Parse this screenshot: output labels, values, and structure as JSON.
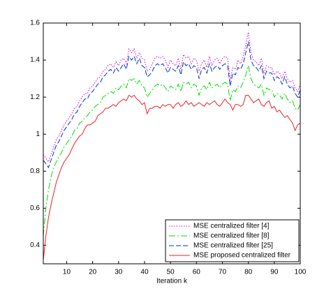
{
  "chart_data": {
    "type": "line",
    "xlabel": "Iteration k",
    "x": [
      1,
      2,
      3,
      4,
      5,
      6,
      7,
      8,
      9,
      10,
      11,
      12,
      13,
      14,
      15,
      16,
      17,
      18,
      19,
      20,
      21,
      22,
      23,
      24,
      25,
      26,
      27,
      28,
      29,
      30,
      31,
      32,
      33,
      34,
      35,
      36,
      37,
      38,
      39,
      40,
      41,
      42,
      43,
      44,
      45,
      46,
      47,
      48,
      49,
      50,
      51,
      52,
      53,
      54,
      55,
      56,
      57,
      58,
      59,
      60,
      61,
      62,
      63,
      64,
      65,
      66,
      67,
      68,
      69,
      70,
      71,
      72,
      73,
      74,
      75,
      76,
      77,
      78,
      79,
      80,
      81,
      82,
      83,
      84,
      85,
      86,
      87,
      88,
      89,
      90,
      91,
      92,
      93,
      94,
      95,
      96,
      97,
      98,
      99,
      100
    ],
    "series": [
      {
        "name": "MSE centralized filter [4]",
        "color": "#cc00cc",
        "linestyle": "dotted",
        "values": [
          0.89,
          0.87,
          0.85,
          0.89,
          0.93,
          0.97,
          0.99,
          1.02,
          1.05,
          1.07,
          1.09,
          1.11,
          1.14,
          1.15,
          1.18,
          1.2,
          1.22,
          1.22,
          1.25,
          1.26,
          1.28,
          1.3,
          1.31,
          1.34,
          1.35,
          1.37,
          1.38,
          1.36,
          1.39,
          1.37,
          1.4,
          1.41,
          1.38,
          1.46,
          1.44,
          1.46,
          1.41,
          1.44,
          1.41,
          1.4,
          1.34,
          1.35,
          1.38,
          1.41,
          1.42,
          1.41,
          1.42,
          1.4,
          1.36,
          1.4,
          1.38,
          1.37,
          1.41,
          1.35,
          1.43,
          1.41,
          1.42,
          1.38,
          1.41,
          1.4,
          1.34,
          1.38,
          1.4,
          1.36,
          1.42,
          1.37,
          1.4,
          1.41,
          1.38,
          1.41,
          1.42,
          1.41,
          1.29,
          1.36,
          1.35,
          1.4,
          1.38,
          1.42,
          1.48,
          1.55,
          1.44,
          1.4,
          1.39,
          1.37,
          1.41,
          1.33,
          1.37,
          1.36,
          1.36,
          1.32,
          1.34,
          1.33,
          1.3,
          1.34,
          1.3,
          1.28,
          1.29,
          1.25,
          1.23,
          1.27
        ]
      },
      {
        "name": "MSE centralized filter [8]",
        "color": "#00dd00",
        "linestyle": "dashdot",
        "values": [
          0.45,
          0.6,
          0.7,
          0.77,
          0.82,
          0.85,
          0.88,
          0.9,
          0.93,
          0.95,
          0.97,
          0.99,
          1.02,
          1.03,
          1.06,
          1.07,
          1.09,
          1.1,
          1.12,
          1.13,
          1.15,
          1.16,
          1.17,
          1.2,
          1.21,
          1.22,
          1.23,
          1.22,
          1.25,
          1.24,
          1.26,
          1.27,
          1.25,
          1.3,
          1.29,
          1.3,
          1.27,
          1.29,
          1.26,
          1.25,
          1.2,
          1.22,
          1.24,
          1.26,
          1.27,
          1.26,
          1.27,
          1.25,
          1.23,
          1.26,
          1.25,
          1.24,
          1.27,
          1.23,
          1.28,
          1.27,
          1.28,
          1.25,
          1.27,
          1.26,
          1.21,
          1.25,
          1.26,
          1.24,
          1.28,
          1.25,
          1.26,
          1.27,
          1.25,
          1.27,
          1.28,
          1.27,
          1.18,
          1.24,
          1.23,
          1.26,
          1.25,
          1.28,
          1.32,
          1.37,
          1.3,
          1.27,
          1.26,
          1.25,
          1.27,
          1.21,
          1.25,
          1.24,
          1.24,
          1.2,
          1.22,
          1.21,
          1.19,
          1.22,
          1.19,
          1.17,
          1.18,
          1.14,
          1.13,
          1.16
        ]
      },
      {
        "name": "MSE centralized filter [25]",
        "color": "#0033cc",
        "linestyle": "dashed",
        "values": [
          0.86,
          0.84,
          0.82,
          0.86,
          0.9,
          0.94,
          0.96,
          0.99,
          1.02,
          1.04,
          1.06,
          1.08,
          1.11,
          1.12,
          1.15,
          1.17,
          1.19,
          1.19,
          1.22,
          1.23,
          1.25,
          1.27,
          1.28,
          1.31,
          1.32,
          1.34,
          1.35,
          1.33,
          1.36,
          1.34,
          1.36,
          1.38,
          1.35,
          1.42,
          1.4,
          1.42,
          1.38,
          1.41,
          1.37,
          1.36,
          1.31,
          1.32,
          1.34,
          1.37,
          1.38,
          1.37,
          1.38,
          1.36,
          1.33,
          1.36,
          1.35,
          1.34,
          1.37,
          1.32,
          1.39,
          1.37,
          1.38,
          1.35,
          1.37,
          1.36,
          1.3,
          1.35,
          1.36,
          1.33,
          1.38,
          1.34,
          1.36,
          1.37,
          1.35,
          1.37,
          1.38,
          1.37,
          1.26,
          1.33,
          1.32,
          1.36,
          1.35,
          1.38,
          1.44,
          1.5,
          1.4,
          1.37,
          1.36,
          1.34,
          1.37,
          1.3,
          1.34,
          1.33,
          1.33,
          1.29,
          1.31,
          1.3,
          1.27,
          1.31,
          1.27,
          1.25,
          1.26,
          1.22,
          1.2,
          1.24
        ]
      },
      {
        "name": "MSE proposed centralized filter",
        "color": "#ee2222",
        "linestyle": "solid",
        "values": [
          0.32,
          0.45,
          0.55,
          0.62,
          0.68,
          0.74,
          0.78,
          0.82,
          0.85,
          0.87,
          0.89,
          0.92,
          0.95,
          0.97,
          0.99,
          1.0,
          1.03,
          1.05,
          1.05,
          1.06,
          1.07,
          1.1,
          1.11,
          1.12,
          1.14,
          1.14,
          1.15,
          1.16,
          1.15,
          1.17,
          1.18,
          1.19,
          1.18,
          1.21,
          1.2,
          1.21,
          1.19,
          1.18,
          1.16,
          1.17,
          1.11,
          1.14,
          1.14,
          1.15,
          1.15,
          1.14,
          1.16,
          1.15,
          1.16,
          1.16,
          1.14,
          1.16,
          1.17,
          1.15,
          1.16,
          1.18,
          1.16,
          1.17,
          1.15,
          1.16,
          1.17,
          1.16,
          1.15,
          1.17,
          1.16,
          1.17,
          1.18,
          1.16,
          1.15,
          1.17,
          1.19,
          1.17,
          1.16,
          1.13,
          1.16,
          1.16,
          1.15,
          1.16,
          1.21,
          1.21,
          1.19,
          1.17,
          1.18,
          1.19,
          1.16,
          1.15,
          1.17,
          1.18,
          1.14,
          1.15,
          1.12,
          1.13,
          1.11,
          1.09,
          1.1,
          1.08,
          1.06,
          1.02,
          1.05,
          1.06
        ]
      }
    ],
    "xlim": [
      1,
      100
    ],
    "xticks": [
      10,
      20,
      30,
      40,
      50,
      60,
      70,
      80,
      90,
      100
    ],
    "ylim": [
      0.3,
      1.6
    ],
    "yticks": [
      0.4,
      0.6,
      0.8,
      1,
      1.2,
      1.4,
      1.6
    ],
    "legend": "lower right"
  }
}
